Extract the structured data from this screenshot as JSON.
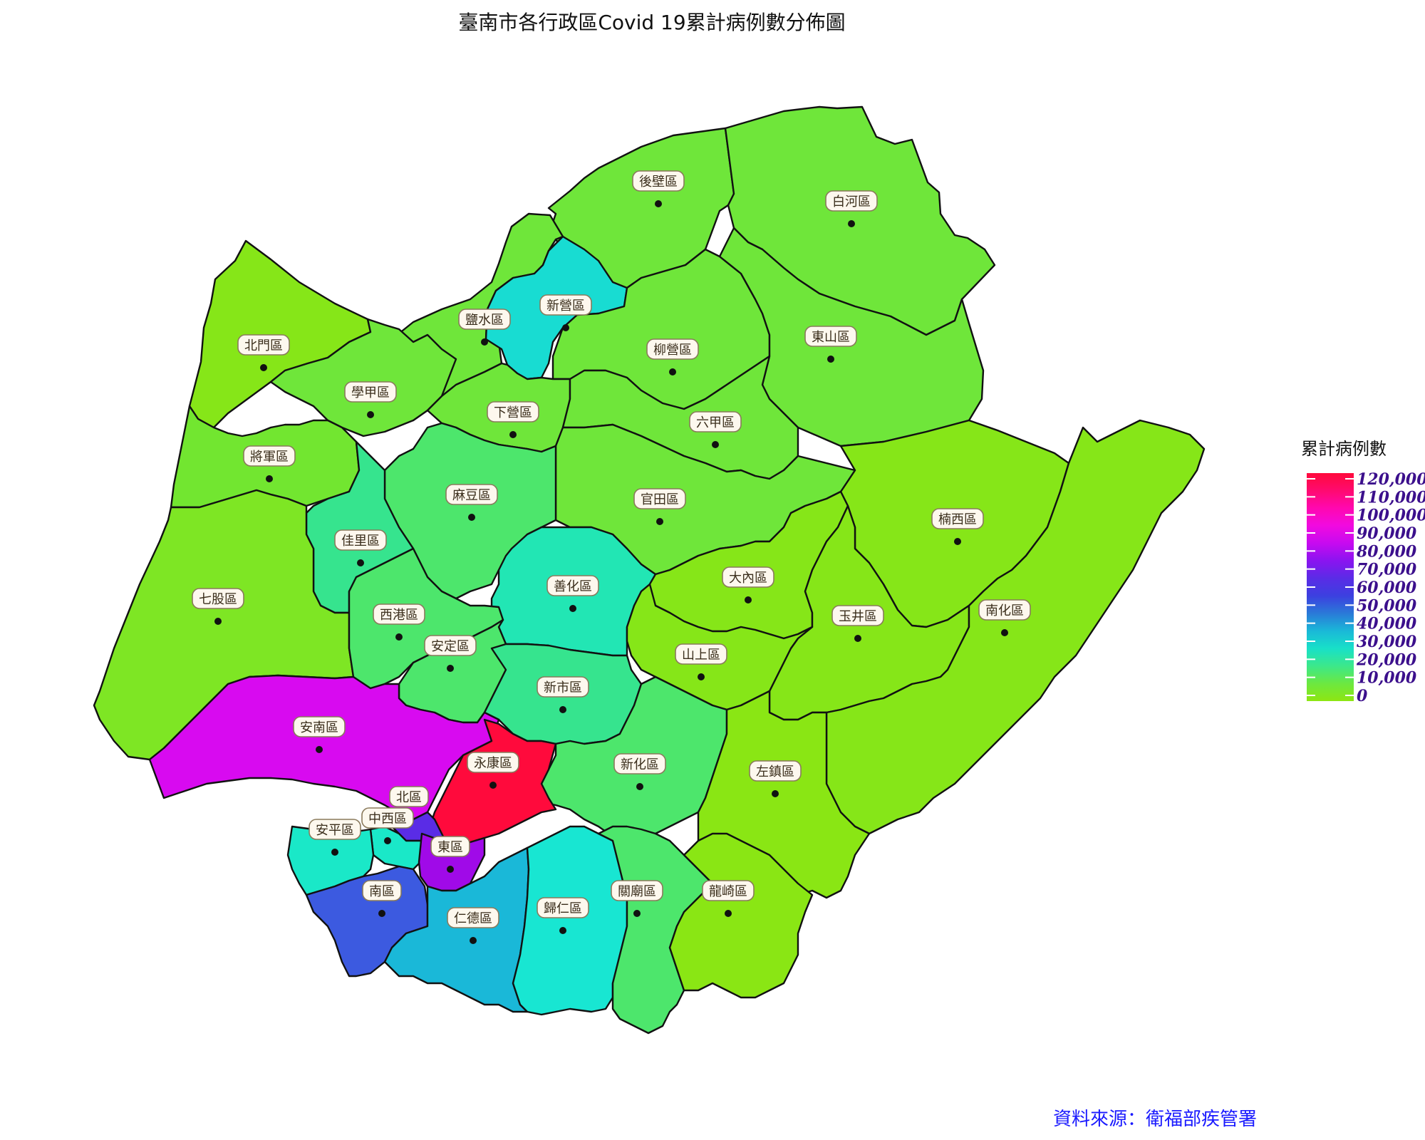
{
  "title": "臺南市各行政區Covid 19累計病例數分佈圖",
  "source": "資料來源：衛福部疾管署",
  "legend": {
    "title": "累計病例數",
    "ticks": [
      "120,000",
      "110,000",
      "100,000",
      "90,000",
      "80,000",
      "70,000",
      "60,000",
      "50,000",
      "40,000",
      "30,000",
      "20,000",
      "10,000",
      "0"
    ],
    "gradient": [
      "#ff0a3c",
      "#ff0a70",
      "#ff08b0",
      "#f10ae0",
      "#c70af0",
      "#8a14f0",
      "#5a2ce6",
      "#3c40e0",
      "#2a7ad8",
      "#1ab8d8",
      "#18e0c8",
      "#3ce88a",
      "#6ce840",
      "#8ee612"
    ],
    "tick_color": "#3b0f8c"
  },
  "districts": [
    {
      "name": "後壁區",
      "color": "#6fe63a",
      "label": "後壁區"
    },
    {
      "name": "白河區",
      "color": "#6fe63a",
      "label": "白河區"
    },
    {
      "name": "北門區",
      "color": "#86e618",
      "label": "北門區"
    },
    {
      "name": "鹽水區",
      "color": "#6fe63a",
      "label": "鹽水區"
    },
    {
      "name": "新營區",
      "color": "#18dcd2",
      "label": "新營區"
    },
    {
      "name": "柳營區",
      "color": "#6fe63a",
      "label": "柳營區"
    },
    {
      "name": "東山區",
      "color": "#6fe63a",
      "label": "東山區"
    },
    {
      "name": "學甲區",
      "color": "#6fe63a",
      "label": "學甲區"
    },
    {
      "name": "下營區",
      "color": "#6fe63a",
      "label": "下營區"
    },
    {
      "name": "六甲區",
      "color": "#6fe63a",
      "label": "六甲區"
    },
    {
      "name": "將軍區",
      "color": "#72e630",
      "label": "將軍區"
    },
    {
      "name": "楠西區",
      "color": "#86e618",
      "label": "楠西區"
    },
    {
      "name": "官田區",
      "color": "#6fe63a",
      "label": "官田區"
    },
    {
      "name": "麻豆區",
      "color": "#4de66c",
      "label": "麻豆區"
    },
    {
      "name": "佳里區",
      "color": "#36e48e",
      "label": "佳里區"
    },
    {
      "name": "善化區",
      "color": "#22e6b4",
      "label": "善化區"
    },
    {
      "name": "大內區",
      "color": "#86e618",
      "label": "大內區"
    },
    {
      "name": "七股區",
      "color": "#7ee624",
      "label": "七股區"
    },
    {
      "name": "西港區",
      "color": "#4de66c",
      "label": "西港區"
    },
    {
      "name": "玉井區",
      "color": "#86e618",
      "label": "玉井區"
    },
    {
      "name": "南化區",
      "color": "#86e618",
      "label": "南化區"
    },
    {
      "name": "安定區",
      "color": "#4de66c",
      "label": "安定區"
    },
    {
      "name": "山上區",
      "color": "#86e618",
      "label": "山上區"
    },
    {
      "name": "新市區",
      "color": "#36e48e",
      "label": "新市區"
    },
    {
      "name": "安南區",
      "color": "#d80af0",
      "label": "安南區"
    },
    {
      "name": "新化區",
      "color": "#4de66c",
      "label": "新化區"
    },
    {
      "name": "左鎮區",
      "color": "#8ae614",
      "label": "左鎮區"
    },
    {
      "name": "永康區",
      "color": "#ff0a3c",
      "label": "永康區"
    },
    {
      "name": "北區",
      "color": "#5a2ce6",
      "label": "北區"
    },
    {
      "name": "中西區",
      "color": "#1ae8c8",
      "label": "中西區"
    },
    {
      "name": "安平區",
      "color": "#1ae8c8",
      "label": "安平區"
    },
    {
      "name": "東區",
      "color": "#a00ae8",
      "label": "東區"
    },
    {
      "name": "南區",
      "color": "#3c5ae0",
      "label": "南區"
    },
    {
      "name": "仁德區",
      "color": "#1ab8d8",
      "label": "仁德區"
    },
    {
      "name": "歸仁區",
      "color": "#18e6d2",
      "label": "歸仁區"
    },
    {
      "name": "關廟區",
      "color": "#4de66c",
      "label": "關廟區"
    },
    {
      "name": "龍崎區",
      "color": "#8ae614",
      "label": "龍崎區"
    }
  ]
}
